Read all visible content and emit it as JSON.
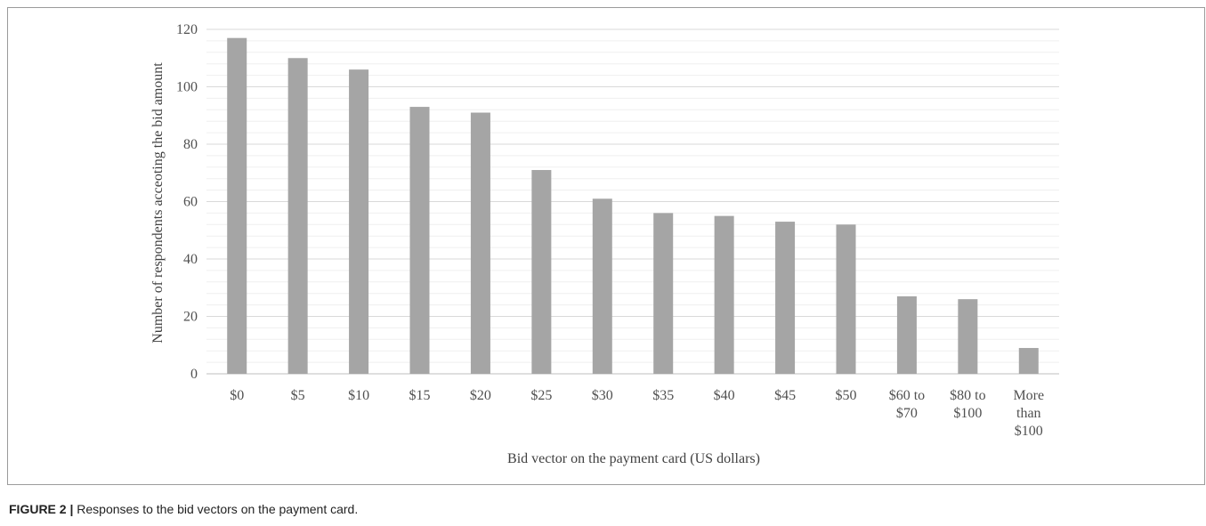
{
  "caption": {
    "label": "FIGURE 2 |",
    "text": "Responses to the bid vectors on the payment card."
  },
  "colors": {
    "bar": "#a5a5a5",
    "major_grid": "#d9d9d9",
    "minor_grid": "#efefef",
    "frame": "#9b9b9b"
  },
  "chart_data": {
    "type": "bar",
    "title": "",
    "xlabel": "Bid vector on the payment card (US dollars)",
    "ylabel": "Number of respondents acceoting the bid amount",
    "categories": [
      [
        "$0"
      ],
      [
        "$5"
      ],
      [
        "$10"
      ],
      [
        "$15"
      ],
      [
        "$20"
      ],
      [
        "$25"
      ],
      [
        "$30"
      ],
      [
        "$35"
      ],
      [
        "$40"
      ],
      [
        "$45"
      ],
      [
        "$50"
      ],
      [
        "$60 to",
        "$70"
      ],
      [
        "$80 to",
        "$100"
      ],
      [
        "More",
        "than",
        "$100"
      ]
    ],
    "values": [
      117,
      110,
      106,
      93,
      91,
      71,
      61,
      56,
      55,
      53,
      52,
      27,
      26,
      9
    ],
    "ylim": [
      0,
      120
    ],
    "y_ticks": [
      0,
      20,
      40,
      60,
      80,
      100,
      120
    ],
    "minor_grid_step": 4,
    "grid": true,
    "legend": "none"
  }
}
